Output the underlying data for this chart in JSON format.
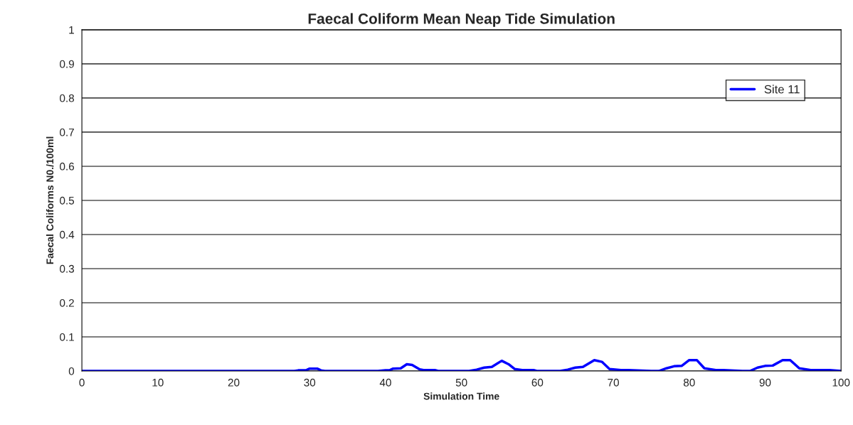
{
  "chart_data": {
    "type": "line",
    "title": "Faecal Coliform Mean Neap Tide Simulation",
    "xlabel": "Simulation Time",
    "ylabel": "Faecal Coliforms N0./100ml",
    "series": [
      {
        "name": "Site 11",
        "color": "#0000ff",
        "x": [
          0,
          28,
          28.5,
          29.5,
          30,
          31,
          31.5,
          32,
          39,
          40,
          40.5,
          41,
          42,
          42.8,
          43.5,
          44.5,
          45,
          46.5,
          47,
          51,
          52,
          53,
          54,
          55.3,
          56.2,
          57,
          58,
          59.5,
          60,
          63,
          64,
          65,
          66,
          67.5,
          68.5,
          69.5,
          71,
          72,
          75,
          76,
          77,
          78,
          79,
          80,
          81,
          82,
          83.5,
          84.5,
          87,
          88,
          89,
          90,
          91,
          92.3,
          93.3,
          94.5,
          96,
          98.5,
          100
        ],
        "values": [
          0,
          0,
          0.002,
          0.002,
          0.007,
          0.007,
          0.002,
          0,
          0,
          0.002,
          0.002,
          0.007,
          0.008,
          0.02,
          0.018,
          0.005,
          0.003,
          0.003,
          0,
          0,
          0.004,
          0.01,
          0.012,
          0.03,
          0.02,
          0.006,
          0.003,
          0.003,
          0,
          0,
          0.004,
          0.01,
          0.012,
          0.032,
          0.027,
          0.006,
          0.003,
          0.003,
          0,
          0,
          0.008,
          0.014,
          0.015,
          0.032,
          0.032,
          0.008,
          0.003,
          0.003,
          0,
          0,
          0.01,
          0.015,
          0.016,
          0.032,
          0.032,
          0.008,
          0.003,
          0.003,
          0
        ]
      }
    ],
    "xlim": [
      0,
      100
    ],
    "xticks": [
      0,
      10,
      20,
      30,
      40,
      50,
      60,
      70,
      80,
      90,
      100
    ],
    "ylim": [
      0,
      1
    ],
    "yticks": [
      0,
      0.1,
      0.2,
      0.3,
      0.4,
      0.5,
      0.6,
      0.7,
      0.8,
      0.9,
      1
    ],
    "grid": "y",
    "legend": "top right",
    "line_style": "solid",
    "marker": "none"
  }
}
